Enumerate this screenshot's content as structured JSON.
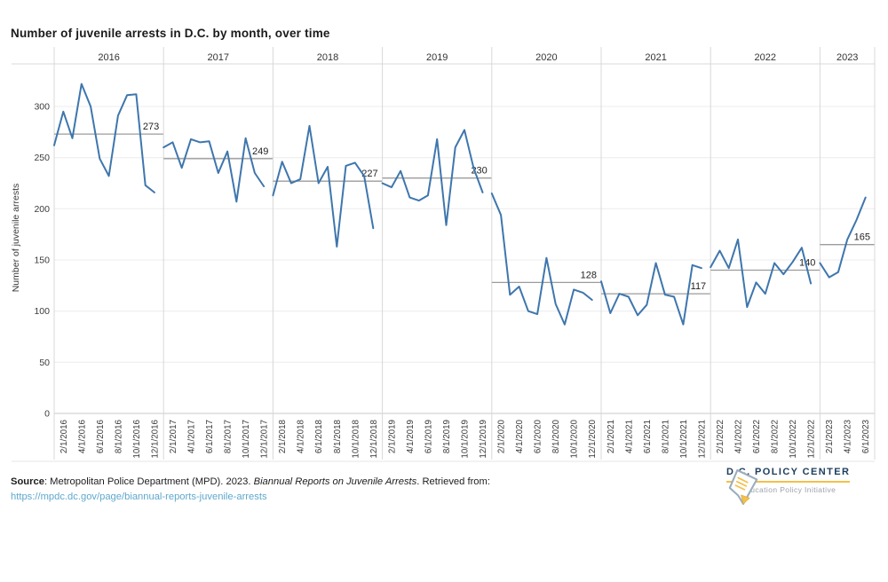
{
  "title": "Number of juvenile arrests in D.C. by month, over time",
  "chart_data": {
    "type": "line",
    "title": "Number of juvenile arrests in D.C. by month, over time",
    "ylabel": "Number of juvenile arrests",
    "yticks": [
      0,
      50,
      100,
      150,
      200,
      250,
      300
    ],
    "ylim": [
      0,
      340
    ],
    "grid": true,
    "legend": "none",
    "line_color": "#3e76ad",
    "avg_line_color": "#9b9b9b",
    "panels": [
      {
        "year": "2016",
        "mean": 273,
        "mean_label": "273",
        "values": [
          262,
          295,
          269,
          322,
          300,
          249,
          232,
          291,
          311,
          312,
          223,
          216
        ],
        "x_tick_labels": [
          "2/1/2016",
          "4/1/2016",
          "6/1/2016",
          "8/1/2016",
          "10/1/2016",
          "12/1/2016"
        ]
      },
      {
        "year": "2017",
        "mean": 249,
        "mean_label": "249",
        "values": [
          260,
          265,
          240,
          268,
          265,
          266,
          235,
          256,
          207,
          269,
          235,
          222
        ],
        "x_tick_labels": [
          "2/1/2017",
          "4/1/2017",
          "6/1/2017",
          "8/1/2017",
          "10/1/2017",
          "12/1/2017"
        ]
      },
      {
        "year": "2018",
        "mean": 227,
        "mean_label": "227",
        "values": [
          213,
          246,
          225,
          229,
          281,
          225,
          241,
          163,
          242,
          245,
          232,
          181
        ],
        "x_tick_labels": [
          "2/1/2018",
          "4/1/2018",
          "6/1/2018",
          "8/1/2018",
          "10/1/2018",
          "12/1/2018"
        ]
      },
      {
        "year": "2019",
        "mean": 230,
        "mean_label": "230",
        "values": [
          225,
          221,
          237,
          211,
          208,
          213,
          268,
          184,
          260,
          277,
          240,
          216
        ],
        "x_tick_labels": [
          "2/1/2019",
          "4/1/2019",
          "6/1/2019",
          "8/1/2019",
          "10/1/2019",
          "12/1/2019"
        ]
      },
      {
        "year": "2020",
        "mean": 128,
        "mean_label": "128",
        "values": [
          215,
          194,
          116,
          124,
          100,
          97,
          152,
          107,
          87,
          121,
          118,
          111
        ],
        "x_tick_labels": [
          "2/1/2020",
          "4/1/2020",
          "6/1/2020",
          "8/1/2020",
          "10/1/2020",
          "12/1/2020"
        ]
      },
      {
        "year": "2021",
        "mean": 117,
        "mean_label": "117",
        "values": [
          129,
          98,
          117,
          114,
          96,
          106,
          147,
          116,
          114,
          87,
          145,
          142
        ],
        "x_tick_labels": [
          "2/1/2021",
          "4/1/2021",
          "6/1/2021",
          "8/1/2021",
          "10/1/2021",
          "12/1/2021"
        ]
      },
      {
        "year": "2022",
        "mean": 140,
        "mean_label": "140",
        "values": [
          143,
          159,
          142,
          170,
          104,
          128,
          117,
          147,
          136,
          148,
          162,
          127
        ],
        "x_tick_labels": [
          "2/1/2022",
          "4/1/2022",
          "6/1/2022",
          "8/1/2022",
          "10/1/2022",
          "12/1/2022"
        ]
      },
      {
        "year": "2023",
        "mean": 165,
        "mean_label": "165",
        "values": [
          147,
          133,
          138,
          170,
          189,
          211
        ],
        "x_tick_labels": [
          "2/1/2023",
          "4/1/2023",
          "6/1/2023"
        ]
      }
    ]
  },
  "footer": {
    "source_label": "Source",
    "source_rest": ": Metropolitan Police Department (MPD). 2023. ",
    "source_italic": "Biannual Reports on Juvenile Arrests",
    "source_suffix": ". Retrieved from:",
    "link_text": "https://mpdc.dc.gov/page/biannual-reports-juvenile-arrests"
  },
  "logo": {
    "name": "D.C. POLICY CENTER",
    "subtitle": "Education Policy Initiative"
  },
  "colors": {
    "line": "#3e76ad",
    "avg_line": "#9b9b9b",
    "link": "#5fa8cd",
    "logo_navy": "#1c3e5e",
    "logo_yellow": "#f3c04a",
    "logo_gray": "#9aa2ab"
  }
}
